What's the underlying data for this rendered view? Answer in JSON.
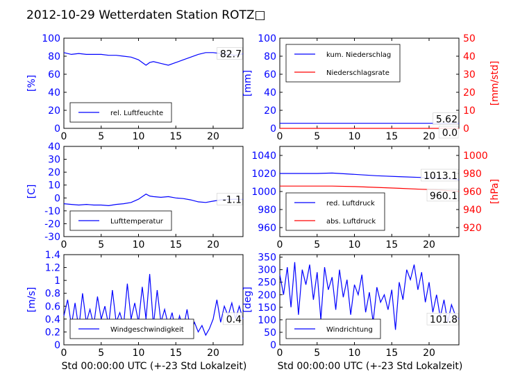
{
  "title": "2012-10-29 Wetterdaten Station ROTZ□",
  "colors": {
    "blue": "#0000ff",
    "red": "#ff0000",
    "black": "#000000"
  },
  "xlabel": "Std 00:00:00 UTC (+-23 Std Lokalzeit)",
  "chart_data": [
    {
      "type": "line",
      "xlim": [
        0,
        24
      ],
      "xticks": [
        0,
        5,
        10,
        15,
        20
      ],
      "ylabel": "[%]",
      "ylim": [
        0,
        100
      ],
      "yticks": [
        0,
        20,
        40,
        60,
        80,
        100
      ],
      "last_value_label": "82.7",
      "legend": "lower-left",
      "series": [
        {
          "name": "rel. Luftfeuchte",
          "color": "#0000ff",
          "axis": "left",
          "x": [
            0,
            1,
            2,
            3,
            4,
            5,
            6,
            7,
            8,
            9,
            10,
            10.5,
            11,
            11.5,
            12,
            13,
            14,
            15,
            16,
            17,
            18,
            19,
            20,
            21,
            22,
            23,
            24
          ],
          "y": [
            84,
            82,
            83,
            82,
            82,
            82,
            81,
            81,
            80,
            79,
            76,
            73,
            70,
            73,
            74,
            72,
            70,
            73,
            76,
            79,
            82,
            84,
            84,
            83,
            82,
            81,
            82.7
          ]
        }
      ]
    },
    {
      "type": "line",
      "xlim": [
        0,
        24
      ],
      "xticks": [
        0,
        5,
        10,
        15,
        20
      ],
      "ylabel": "[mm]",
      "ylim": [
        0,
        100
      ],
      "yticks": [
        0,
        20,
        40,
        60,
        80,
        100
      ],
      "ylabel_right": "[mm/std]",
      "ylim_right": [
        0,
        50
      ],
      "yticks_right": [
        0,
        10,
        20,
        30,
        40,
        50
      ],
      "last_value_labels": [
        "5.62",
        "0.0"
      ],
      "legend": "top-left",
      "series": [
        {
          "name": "kum. Niederschlag",
          "color": "#0000ff",
          "axis": "left",
          "x": [
            0,
            24
          ],
          "y": [
            5.62,
            5.62
          ]
        },
        {
          "name": "Niederschlagsrate",
          "color": "#ff0000",
          "axis": "right",
          "x": [
            0,
            24
          ],
          "y": [
            0.0,
            0.0
          ]
        }
      ]
    },
    {
      "type": "line",
      "xlim": [
        0,
        24
      ],
      "xticks": [
        0,
        5,
        10,
        15,
        20
      ],
      "ylabel": "[C]",
      "ylim": [
        -30,
        40
      ],
      "yticks": [
        -30,
        -20,
        -10,
        0,
        10,
        20,
        30,
        40
      ],
      "last_value_label": "-1.1",
      "legend": "lower-left",
      "series": [
        {
          "name": "Lufttemperatur",
          "color": "#0000ff",
          "axis": "left",
          "x": [
            0,
            1,
            2,
            3,
            4,
            5,
            6,
            7,
            8,
            9,
            10,
            10.5,
            11,
            11.5,
            12,
            13,
            14,
            15,
            16,
            17,
            18,
            19,
            20,
            21,
            22,
            23,
            24
          ],
          "y": [
            -4.5,
            -5,
            -5.5,
            -5,
            -5.5,
            -5.5,
            -6,
            -5,
            -4.5,
            -3.5,
            -1,
            1,
            3,
            1.5,
            1,
            0.5,
            1,
            0,
            -0.5,
            -1.5,
            -3,
            -3.5,
            -2.5,
            -1.5,
            -1.2,
            -1,
            -1.1
          ]
        }
      ]
    },
    {
      "type": "line",
      "xlim": [
        0,
        24
      ],
      "xticks": [
        0,
        5,
        10,
        15,
        20
      ],
      "ylim": [
        950,
        1050
      ],
      "yticks": [
        960,
        980,
        1000,
        1020,
        1040
      ],
      "ylabel_right": "[hPa]",
      "ylim_right": [
        910,
        1010
      ],
      "yticks_right": [
        920,
        940,
        960,
        980,
        1000
      ],
      "last_value_labels": [
        "1013.1",
        "960.1"
      ],
      "legend": "lower-left",
      "series": [
        {
          "name": "red. Luftdruck",
          "color": "#0000ff",
          "axis": "left",
          "x": [
            0,
            3,
            5,
            7,
            10,
            13,
            16,
            19,
            21,
            24
          ],
          "y": [
            1020,
            1020,
            1020,
            1020.5,
            1019,
            1017.5,
            1016.5,
            1015.5,
            1015,
            1013.1
          ]
        },
        {
          "name": "abs. Luftdruck",
          "color": "#ff0000",
          "axis": "right",
          "x": [
            0,
            3,
            5,
            7,
            10,
            13,
            16,
            19,
            21,
            24
          ],
          "y": [
            966,
            966,
            966,
            966,
            965.5,
            964.5,
            963.5,
            962.5,
            962,
            960.1
          ]
        }
      ]
    },
    {
      "type": "line",
      "xlim": [
        0,
        24
      ],
      "xticks": [
        0,
        5,
        10,
        15,
        20
      ],
      "xlabel": "Std 00:00:00 UTC (+-23 Std Lokalzeit)",
      "ylabel": "[m/s]",
      "ylim": [
        0,
        1.4
      ],
      "yticks": [
        0,
        0.2,
        0.4,
        0.6,
        0.8,
        1.0,
        1.2,
        1.4
      ],
      "last_value_label": "0.4",
      "legend": "lower-left",
      "series": [
        {
          "name": "Windgeschwindigkeit",
          "color": "#0000ff",
          "axis": "left",
          "x": [
            0,
            0.5,
            1,
            1.5,
            2,
            2.5,
            3,
            3.5,
            4,
            4.5,
            5,
            5.5,
            6,
            6.5,
            7,
            7.5,
            8,
            8.5,
            9,
            9.5,
            10,
            10.5,
            11,
            11.5,
            12,
            12.5,
            13,
            13.5,
            14,
            14.5,
            15,
            15.5,
            16,
            16.5,
            17,
            17.5,
            18,
            18.5,
            19,
            19.5,
            20,
            20.5,
            21,
            21.5,
            22,
            22.5,
            23,
            23.5,
            24
          ],
          "y": [
            0.45,
            0.7,
            0.3,
            0.65,
            0.25,
            0.8,
            0.35,
            0.55,
            0.3,
            0.75,
            0.4,
            0.6,
            0.3,
            0.85,
            0.35,
            0.5,
            0.3,
            0.95,
            0.4,
            0.65,
            0.35,
            0.9,
            0.4,
            1.1,
            0.3,
            0.85,
            0.35,
            0.55,
            0.3,
            0.5,
            0.2,
            0.45,
            0.25,
            0.55,
            0.2,
            0.35,
            0.2,
            0.3,
            0.15,
            0.25,
            0.4,
            0.7,
            0.35,
            0.6,
            0.45,
            0.65,
            0.4,
            0.6,
            0.4
          ]
        }
      ]
    },
    {
      "type": "line",
      "xlim": [
        0,
        24
      ],
      "xticks": [
        0,
        5,
        10,
        15,
        20
      ],
      "xlabel": "Std 00:00:00 UTC (+-23 Std Lokalzeit)",
      "ylabel": "[deg]",
      "ylim": [
        0,
        360
      ],
      "yticks": [
        0,
        50,
        100,
        150,
        200,
        250,
        300,
        350
      ],
      "last_value_label": "101.8",
      "legend": "lower-left",
      "series": [
        {
          "name": "Windrichtung",
          "color": "#0000ff",
          "axis": "left",
          "x": [
            0,
            0.5,
            1,
            1.5,
            2,
            2.5,
            3,
            3.5,
            4,
            4.5,
            5,
            5.5,
            6,
            6.5,
            7,
            7.5,
            8,
            8.5,
            9,
            9.5,
            10,
            10.5,
            11,
            11.5,
            12,
            12.5,
            13,
            13.5,
            14,
            14.5,
            15,
            15.5,
            16,
            16.5,
            17,
            17.5,
            18,
            18.5,
            19,
            19.5,
            20,
            20.5,
            21,
            21.5,
            22,
            22.5,
            23,
            23.5,
            24
          ],
          "y": [
            280,
            200,
            310,
            150,
            330,
            120,
            300,
            240,
            320,
            180,
            290,
            100,
            310,
            220,
            270,
            140,
            300,
            190,
            260,
            120,
            240,
            200,
            280,
            130,
            210,
            90,
            230,
            170,
            200,
            140,
            220,
            60,
            250,
            180,
            300,
            260,
            320,
            220,
            290,
            170,
            250,
            130,
            200,
            110,
            180,
            90,
            160,
            120,
            101.8
          ]
        }
      ]
    }
  ]
}
